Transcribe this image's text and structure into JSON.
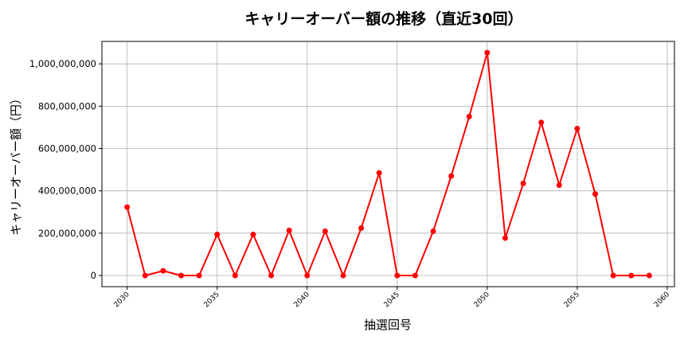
{
  "chart_data": {
    "type": "line",
    "title": "キャリーオーバー額の推移（直近30回）",
    "xlabel": "抽選回号",
    "ylabel": "キャリーオーバー額（円）",
    "x": [
      2030,
      2031,
      2032,
      2033,
      2034,
      2035,
      2036,
      2037,
      2038,
      2039,
      2040,
      2041,
      2042,
      2043,
      2044,
      2045,
      2046,
      2047,
      2048,
      2049,
      2050,
      2051,
      2052,
      2053,
      2054,
      2055,
      2056,
      2057,
      2058,
      2059
    ],
    "series": [
      {
        "name": "キャリーオーバー額",
        "color": "#ff0000",
        "marker": "circle",
        "values": [
          323000000,
          0,
          22000000,
          0,
          0,
          194000000,
          0,
          194000000,
          0,
          213000000,
          0,
          209000000,
          0,
          224000000,
          485000000,
          0,
          0,
          209000000,
          470000000,
          751000000,
          1053000000,
          177000000,
          435000000,
          723000000,
          427000000,
          694000000,
          385000000,
          0,
          0,
          0
        ]
      }
    ],
    "xticks": [
      2030,
      2035,
      2040,
      2045,
      2050,
      2055,
      2060
    ],
    "xtick_labels": [
      "2030",
      "2035",
      "2040",
      "2045",
      "2050",
      "2055",
      "2060"
    ],
    "yticks": [
      0,
      200000000,
      400000000,
      600000000,
      800000000,
      1000000000
    ],
    "ytick_labels": [
      "0",
      "200,000,000",
      "400,000,000",
      "600,000,000",
      "800,000,000",
      "1,000,000,000"
    ],
    "xlim": [
      2028.6,
      2060.4
    ],
    "ylim": [
      -52700000,
      1106000000
    ],
    "grid": true,
    "legend": "none"
  }
}
